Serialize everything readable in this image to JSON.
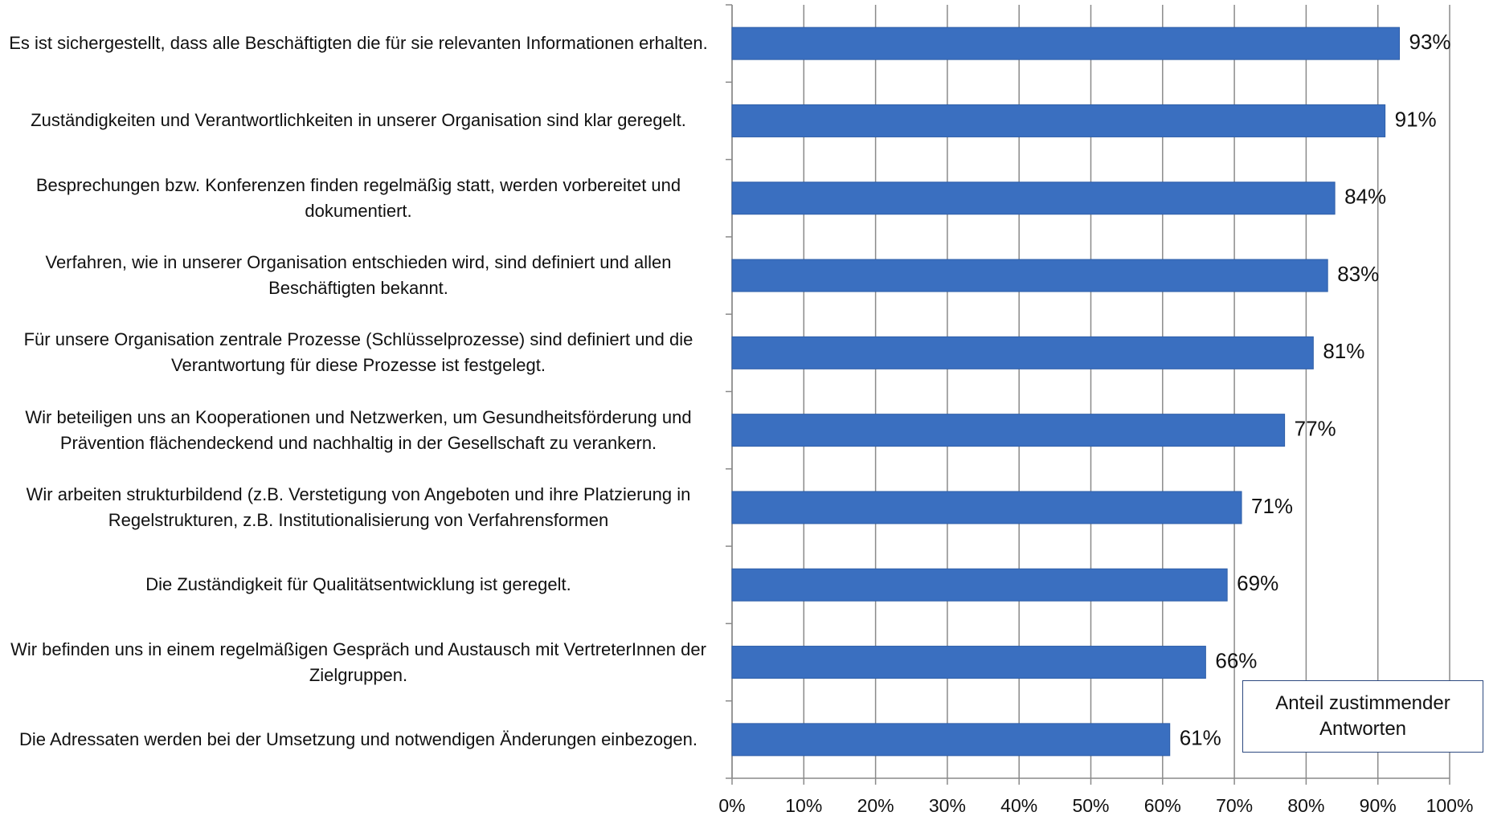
{
  "chart_data": {
    "type": "bar",
    "orientation": "horizontal",
    "categories": [
      "Es ist sichergestellt, dass alle Beschäftigten die für sie relevanten Informationen erhalten.",
      "Zuständigkeiten und Verantwortlichkeiten in unserer Organisation sind klar geregelt.",
      "Besprechungen bzw. Konferenzen finden regelmäßig statt, werden vorbereitet und dokumentiert.",
      "Verfahren, wie in unserer Organisation entschieden wird, sind definiert und allen Beschäftigten bekannt.",
      "Für unsere Organisation zentrale Prozesse (Schlüsselprozesse) sind definiert und die Verantwortung für diese Prozesse ist festgelegt.",
      "Wir beteiligen uns an Kooperationen und Netzwerken, um Gesundheitsförderung und Prävention flächendeckend und nachhaltig in der Gesellschaft zu verankern.",
      "Wir arbeiten strukturbildend (z.B. Verstetigung von Angeboten und ihre Platzierung in Regelstrukturen, z.B. Institutionalisierung von Verfahrensformen",
      "Die Zuständigkeit für Qualitätsentwicklung ist geregelt.",
      "Wir befinden uns in einem regelmäßigen Gespräch und Austausch mit VertreterInnen der Zielgruppen.",
      "Die Adressaten werden bei der Umsetzung und notwendigen Änderungen einbezogen."
    ],
    "series": [
      {
        "name": "Anteil zustimmender Antworten",
        "color": "#3a6fc0",
        "values": [
          93,
          91,
          84,
          83,
          81,
          77,
          71,
          69,
          66,
          61
        ],
        "value_labels": [
          "93%",
          "91%",
          "84%",
          "83%",
          "81%",
          "77%",
          "71%",
          "69%",
          "66%",
          "61%"
        ]
      }
    ],
    "xlim": [
      0,
      100
    ],
    "xticks": [
      {
        "value": 0,
        "label": "0%"
      },
      {
        "value": 10,
        "label": "10%"
      },
      {
        "value": 20,
        "label": "20%"
      },
      {
        "value": 30,
        "label": "30%"
      },
      {
        "value": 40,
        "label": "40%"
      },
      {
        "value": 50,
        "label": "50%"
      },
      {
        "value": 60,
        "label": "60%"
      },
      {
        "value": 70,
        "label": "70%"
      },
      {
        "value": 80,
        "label": "80%"
      },
      {
        "value": 90,
        "label": "90%"
      },
      {
        "value": 100,
        "label": "100%"
      }
    ],
    "grid": true,
    "legend": "lower right"
  }
}
